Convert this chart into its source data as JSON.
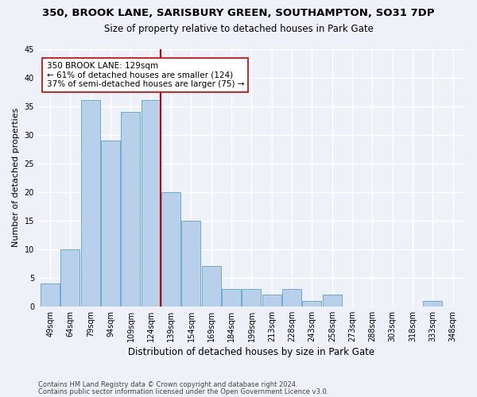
{
  "title1": "350, BROOK LANE, SARISBURY GREEN, SOUTHAMPTON, SO31 7DP",
  "title2": "Size of property relative to detached houses in Park Gate",
  "xlabel": "Distribution of detached houses by size in Park Gate",
  "ylabel": "Number of detached properties",
  "categories": [
    "49sqm",
    "64sqm",
    "79sqm",
    "94sqm",
    "109sqm",
    "124sqm",
    "139sqm",
    "154sqm",
    "169sqm",
    "184sqm",
    "199sqm",
    "213sqm",
    "228sqm",
    "243sqm",
    "258sqm",
    "273sqm",
    "288sqm",
    "303sqm",
    "318sqm",
    "333sqm",
    "348sqm"
  ],
  "values": [
    4,
    10,
    36,
    29,
    34,
    36,
    20,
    15,
    7,
    3,
    3,
    2,
    3,
    1,
    2,
    0,
    0,
    0,
    0,
    1,
    0
  ],
  "bar_color": "#b8d0ea",
  "bar_edge_color": "#6aacd0",
  "vline_x_index": 5,
  "vline_color": "#cc0000",
  "annotation_line1": "350 BROOK LANE: 129sqm",
  "annotation_line2": "← 61% of detached houses are smaller (124)",
  "annotation_line3": "37% of semi-detached houses are larger (75) →",
  "annotation_box_color": "#ffffff",
  "annotation_box_edge": "#cc0000",
  "ylim": [
    0,
    45
  ],
  "yticks": [
    0,
    5,
    10,
    15,
    20,
    25,
    30,
    35,
    40,
    45
  ],
  "footer1": "Contains HM Land Registry data © Crown copyright and database right 2024.",
  "footer2": "Contains public sector information licensed under the Open Government Licence v3.0.",
  "bg_color": "#eef2f8",
  "grid_color": "#ffffff",
  "title1_fontsize": 9.5,
  "title2_fontsize": 8.5,
  "tick_fontsize": 7,
  "ylabel_fontsize": 8,
  "xlabel_fontsize": 8.5
}
